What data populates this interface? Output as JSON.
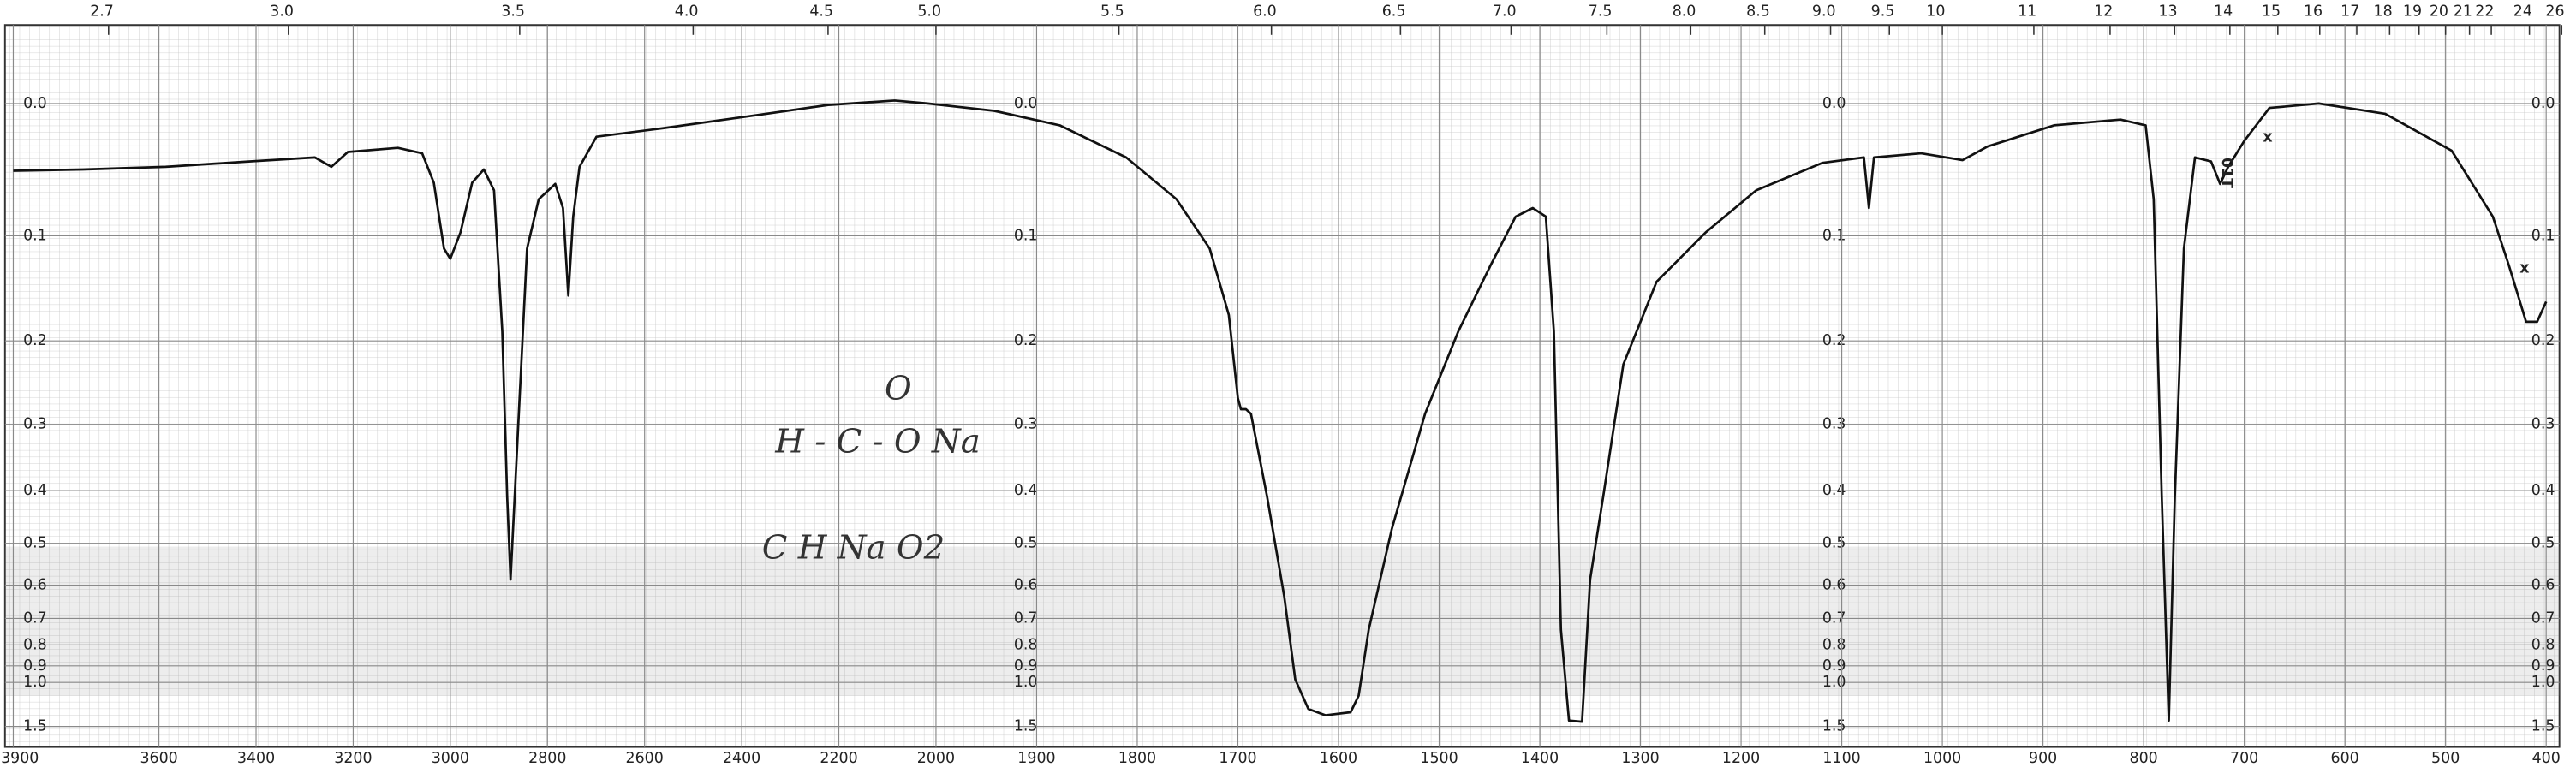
{
  "chart_data": {
    "type": "line",
    "y_scale": "absorbance",
    "xlim": [
      3900,
      400
    ],
    "x_scale_break": 2000,
    "ylim": [
      -0.05,
      2
    ],
    "grid": true,
    "color": "#111111",
    "xticks": [
      3900,
      3600,
      3400,
      3200,
      3000,
      2800,
      2600,
      2400,
      2200,
      2000,
      1900,
      1800,
      1700,
      1600,
      1500,
      1400,
      1300,
      1200,
      1100,
      1000,
      900,
      800,
      700,
      600,
      500,
      400
    ],
    "x2ticks": [
      2.7,
      {
        "value": 3,
        "label": "3.0"
      },
      3.5,
      {
        "value": 4,
        "label": "4.0"
      },
      4.5,
      {
        "value": 5,
        "label": "5.0"
      },
      5.5,
      {
        "value": 6,
        "label": "6.0"
      },
      6.5,
      {
        "value": 7,
        "label": "7.0"
      },
      7.5,
      {
        "value": 8,
        "label": "8.0"
      },
      8.5,
      {
        "value": 9,
        "label": "9.0"
      },
      9.5,
      10,
      11,
      12,
      13,
      14,
      15,
      16,
      17,
      18,
      19,
      20,
      21,
      22,
      24,
      26
    ],
    "yticks": [
      {
        "value": 0,
        "label": "0.0"
      },
      0.1,
      0.2,
      0.3,
      0.4,
      0.5,
      0.6,
      0.7,
      0.8,
      0.9,
      {
        "value": 1,
        "label": "1.0"
      },
      1.5
    ],
    "annotations": [
      "O",
      "H - C - O  Na",
      "C H Na O2",
      "x",
      "x",
      "01T"
    ],
    "x": [
      3900,
      3757,
      3586,
      3415,
      3279,
      3245,
      3211,
      3108,
      3058,
      3034,
      3013,
      3000,
      2979,
      2955,
      2931,
      2910,
      2893,
      2883,
      2876,
      2859,
      2842,
      2818,
      2784,
      2768,
      2757,
      2747,
      2734,
      2699,
      2562,
      2392,
      2222,
      2085,
      2017,
      1942,
      1877,
      1811,
      1761,
      1728,
      1709,
      1700,
      1697,
      1692,
      1687,
      1671,
      1654,
      1643,
      1630,
      1613,
      1588,
      1580,
      1570,
      1547,
      1514,
      1481,
      1449,
      1424,
      1407,
      1394,
      1386,
      1379,
      1371,
      1358,
      1350,
      1337,
      1317,
      1284,
      1235,
      1185,
      1119,
      1078,
      1073,
      1068,
      1021,
      980,
      955,
      889,
      823,
      798,
      790,
      782,
      775,
      769,
      760,
      749,
      733,
      724,
      716,
      700,
      675,
      626,
      560,
      494,
      453,
      437,
      420,
      409,
      400
    ],
    "values": [
      0.048,
      0.047,
      0.045,
      0.041,
      0.038,
      0.045,
      0.034,
      0.031,
      0.035,
      0.057,
      0.111,
      0.12,
      0.097,
      0.057,
      0.047,
      0.063,
      0.19,
      0.41,
      0.585,
      0.286,
      0.111,
      0.07,
      0.058,
      0.077,
      0.154,
      0.084,
      0.045,
      0.023,
      0.017,
      0.009,
      0.001,
      -0.002,
      0,
      0.005,
      0.015,
      0.038,
      0.07,
      0.111,
      0.173,
      0.266,
      0.28,
      0.28,
      0.286,
      0.41,
      0.63,
      0.98,
      1.23,
      1.31,
      1.27,
      1.1,
      0.74,
      0.47,
      0.286,
      0.19,
      0.126,
      0.084,
      0.077,
      0.084,
      0.19,
      0.74,
      1.39,
      1.41,
      0.585,
      0.41,
      0.226,
      0.141,
      0.097,
      0.063,
      0.042,
      0.038,
      0.077,
      0.038,
      0.035,
      0.04,
      0.03,
      0.015,
      0.011,
      0.015,
      0.07,
      0.41,
      1.39,
      0.41,
      0.111,
      0.038,
      0.041,
      0.058,
      0.045,
      0.026,
      0.003,
      0,
      0.007,
      0.033,
      0.084,
      0.126,
      0.18,
      0.18,
      0.16
    ]
  }
}
